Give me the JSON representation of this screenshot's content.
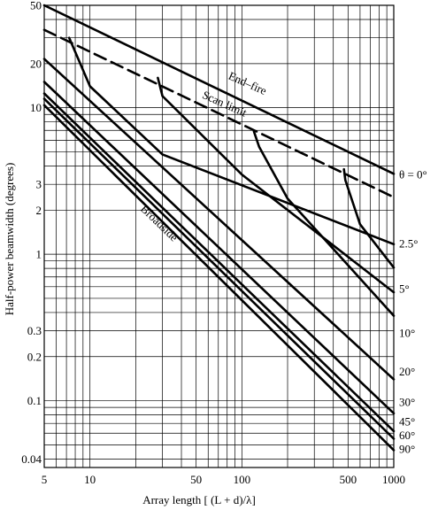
{
  "chart_data": {
    "type": "line",
    "title": "",
    "xlabel": "Array length [ (L + d)/λ]",
    "ylabel": "Half-power beamwidth (degrees)",
    "x_scale": "log",
    "y_scale": "log",
    "xlim": [
      5,
      1000
    ],
    "ylim": [
      0.035,
      50
    ],
    "grid": true,
    "x_ticks": [
      5,
      10,
      50,
      100,
      500,
      1000
    ],
    "x_tick_labels": [
      "5",
      "10",
      "50",
      "100",
      "500",
      "1000"
    ],
    "y_ticks": [
      50,
      20,
      10,
      3,
      2,
      1,
      0.3,
      0.2,
      0.1,
      0.04
    ],
    "y_tick_labels": [
      "50",
      "20",
      "10",
      "3",
      "2",
      "1",
      "0.3",
      "0.2",
      "0.1",
      "0.04"
    ],
    "annotations": {
      "end_fire": "End–fire",
      "scan_limit": "Scan limit",
      "broadside": "Broadside"
    },
    "series": [
      {
        "name": "θ = 0°",
        "style": "solid",
        "x": [
          5,
          1000
        ],
        "y": [
          50,
          3.54
        ]
      },
      {
        "name": "Scan limit",
        "style": "dashed",
        "x": [
          5,
          1000
        ],
        "y": [
          34,
          2.45
        ]
      },
      {
        "name": "2.5°",
        "style": "solid",
        "x": [
          7.3,
          10,
          30,
          1000
        ],
        "y": [
          30,
          14,
          4.8,
          1.17
        ]
      },
      {
        "name": "5°",
        "style": "solid",
        "x": [
          28,
          30,
          100,
          1000
        ],
        "y": [
          16,
          12,
          3.5,
          0.55
        ]
      },
      {
        "name": "10°",
        "style": "solid",
        "x": [
          120,
          130,
          200,
          1000
        ],
        "y": [
          6.9,
          5.4,
          2.4,
          0.38
        ]
      },
      {
        "name": "20°",
        "style": "solid",
        "x": [
          470,
          480,
          600,
          1000
        ],
        "y": [
          3.8,
          3.2,
          1.6,
          0.81
        ]
      },
      {
        "name": "30°",
        "style": "solid",
        "x": [
          5,
          1000
        ],
        "y": [
          21.5,
          0.14
        ]
      },
      {
        "name": "45°",
        "style": "solid",
        "x": [
          5,
          1000
        ],
        "y": [
          15,
          0.082
        ]
      },
      {
        "name": "60°",
        "style": "solid",
        "x": [
          5,
          1000
        ],
        "y": [
          12.5,
          0.062
        ]
      },
      {
        "name": "90°",
        "style": "solid",
        "x": [
          5,
          1000
        ],
        "y": [
          11.5,
          0.055
        ]
      },
      {
        "name": "",
        "style": "solid",
        "x": [
          5,
          1000
        ],
        "y": [
          10.4,
          0.046
        ]
      }
    ],
    "right_labels": [
      {
        "text": "θ = 0°",
        "y": 3.5
      },
      {
        "text": "2.5°",
        "y": 1.18
      },
      {
        "text": "5°",
        "y": 0.58
      },
      {
        "text": "10°",
        "y": 0.29
      },
      {
        "text": "20°",
        "y": 0.158
      },
      {
        "text": "30°",
        "y": 0.098
      },
      {
        "text": "45°",
        "y": 0.072
      },
      {
        "text": "60°",
        "y": 0.058
      },
      {
        "text": "90°",
        "y": 0.047
      }
    ]
  }
}
